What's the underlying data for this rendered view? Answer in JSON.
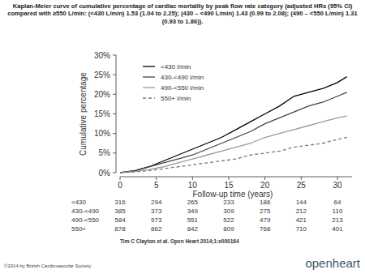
{
  "chart_data": {
    "type": "line",
    "title": "Kaplan-Meier curve of cumulative percentage of cardiac mortality by peak flow rate category (adjusted HRs (95% CI) compared with ≥550 L/min: (<430 L/min) 1.53 (1.04 to 2.25); (430 – <490 L/min) 1.43 (0.99 to 2.08); (490 – <550 L/min) 1.31 (0.93 to 1.86)).",
    "x_label": "Follow-up time (years)",
    "y_label": "Cumulative percentage",
    "x": [
      0,
      2,
      4,
      6,
      8,
      10,
      12,
      14,
      16,
      18,
      20,
      22,
      24,
      26,
      28,
      30,
      31.3
    ],
    "xlim": [
      0,
      32
    ],
    "xticks": [
      0,
      5,
      10,
      15,
      20,
      25,
      30
    ],
    "ylim": [
      0,
      30
    ],
    "yticks": [
      {
        "value": 0,
        "label": "0%"
      },
      {
        "value": 5,
        "label": "5%"
      },
      {
        "value": 10,
        "label": "10%"
      },
      {
        "value": 15,
        "label": "15%"
      },
      {
        "value": 20,
        "label": "20%"
      },
      {
        "value": 25,
        "label": "25%"
      },
      {
        "value": 30,
        "label": "30%"
      }
    ],
    "grid": false,
    "legend": "upper left",
    "series": [
      {
        "name": "<430 l/min",
        "color": "#000000",
        "line_style": "solid",
        "values": [
          0,
          0.5,
          1.5,
          3,
          4.5,
          6,
          7.5,
          9,
          11,
          13,
          15,
          17,
          19.5,
          20.5,
          21.5,
          23,
          24.5
        ]
      },
      {
        "name": "430-<490 l/min",
        "color": "#444444",
        "line_style": "solid",
        "values": [
          0,
          0.5,
          1.5,
          2.5,
          3.5,
          4.5,
          6,
          7.5,
          9,
          10.5,
          12.5,
          14,
          15.5,
          17,
          18,
          19.5,
          20.5
        ]
      },
      {
        "name": "490-<550 l/min",
        "color": "#9a9a9a",
        "line_style": "solid",
        "values": [
          0,
          0.3,
          0.8,
          1.5,
          2.5,
          3.5,
          4.5,
          5.5,
          6.5,
          7.5,
          9,
          10,
          11,
          12,
          13,
          14,
          14.5
        ]
      },
      {
        "name": "550+ l/min",
        "color": "#7a7a7a",
        "line_style": "dashed",
        "values": [
          0,
          0.2,
          0.5,
          1,
          1.5,
          2,
          2.5,
          3,
          3.5,
          4.5,
          5,
          5.5,
          6.5,
          7,
          7.5,
          8.5,
          9
        ]
      }
    ],
    "risk_table": {
      "rows": [
        {
          "label": "<430",
          "values": [
            316,
            294,
            265,
            233,
            186,
            144,
            64
          ]
        },
        {
          "label": "430-<490",
          "values": [
            385,
            373,
            349,
            309,
            275,
            212,
            110
          ]
        },
        {
          "label": "490-<550",
          "values": [
            584,
            573,
            551,
            522,
            479,
            421,
            213
          ]
        },
        {
          "label": "550+",
          "values": [
            878,
            862,
            842,
            809,
            768,
            710,
            401
          ]
        }
      ]
    },
    "source": "Tim C Clayton et al. Open Heart 2014;1:e000164",
    "copyright": "©2014 by British Cardiovascular Society",
    "logo": "openheart"
  }
}
